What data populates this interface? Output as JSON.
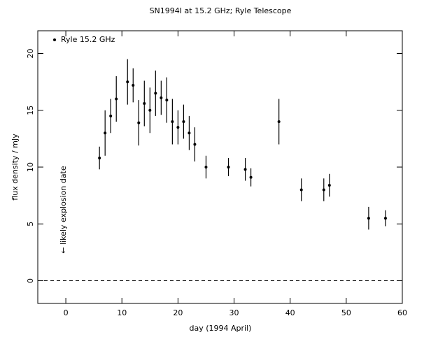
{
  "chart_data": {
    "type": "scatter",
    "title": "SN1994I at 15.2 GHz; Ryle Telescope",
    "xlabel": "day (1994 April)",
    "ylabel": "flux density / mJy",
    "annotation": "← likely explosion date",
    "xlim": [
      -5,
      60
    ],
    "xticks": [
      0,
      10,
      20,
      30,
      40,
      50,
      60
    ],
    "ylim": [
      -2,
      22
    ],
    "yticks": [
      0,
      5,
      10,
      15,
      20
    ],
    "reference_line": 0,
    "legend": "upper left",
    "series": [
      {
        "name": "Ryle 15.2 GHz",
        "color": "#000000",
        "x": [
          6,
          7,
          8,
          9,
          11,
          12,
          13,
          14,
          15,
          16,
          17,
          18,
          19,
          20,
          21,
          22,
          23,
          25,
          29,
          32,
          33,
          38,
          42,
          46,
          47,
          54,
          57
        ],
        "values": [
          10.8,
          13.0,
          14.5,
          16.0,
          17.5,
          17.2,
          13.9,
          15.6,
          15.0,
          16.5,
          16.1,
          15.9,
          14.0,
          13.5,
          14.0,
          13.0,
          12.0,
          10.0,
          10.0,
          9.8,
          9.1,
          14.0,
          8.0,
          8.0,
          8.4,
          5.5,
          5.5
        ],
        "errors": [
          1.0,
          2.0,
          1.5,
          2.0,
          2.0,
          1.5,
          2.0,
          2.0,
          2.0,
          2.0,
          1.5,
          2.0,
          2.0,
          1.5,
          1.5,
          1.5,
          1.5,
          1.0,
          0.8,
          1.0,
          0.8,
          2.0,
          1.0,
          1.0,
          1.0,
          1.0,
          0.7
        ]
      }
    ]
  }
}
